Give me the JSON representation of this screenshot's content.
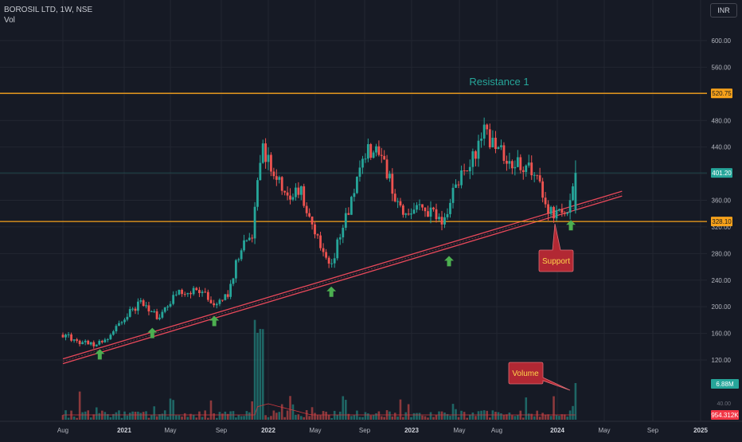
{
  "header": {
    "symbol_line": "BOROSIL LTD, 1W, NSE",
    "volume_label": "Vol",
    "currency": "INR"
  },
  "chart_data": {
    "type": "candlestick",
    "title": "BOROSIL LTD, 1W, NSE",
    "timeframe": "1W",
    "exchange": "NSE",
    "currency": "INR",
    "ylim": [
      88,
      640
    ],
    "y_ticks": [
      120,
      160,
      200,
      240,
      280,
      320,
      360,
      400,
      440,
      480,
      520,
      560,
      600
    ],
    "y_tick_labels": [
      "120.00",
      "160.00",
      "200.00",
      "240.00",
      "280.00",
      "320.00",
      "360.00",
      "400.00",
      "440.00",
      "480.00",
      "520.00",
      "560.00",
      "600.00"
    ],
    "x_ticks": [
      {
        "label": "Aug",
        "date": "2020-08-01"
      },
      {
        "label": "2021",
        "date": "2021-01-01"
      },
      {
        "label": "May",
        "date": "2021-05-01"
      },
      {
        "label": "Sep",
        "date": "2021-09-01"
      },
      {
        "label": "2022",
        "date": "2022-01-01"
      },
      {
        "label": "May",
        "date": "2022-05-01"
      },
      {
        "label": "Sep",
        "date": "2022-09-01"
      },
      {
        "label": "2023",
        "date": "2023-01-01"
      },
      {
        "label": "May",
        "date": "2023-05-01"
      },
      {
        "label": "Aug",
        "date": "2023-08-01"
      },
      {
        "label": "2024",
        "date": "2024-01-01"
      },
      {
        "label": "May",
        "date": "2024-05-01"
      },
      {
        "label": "Sep",
        "date": "2024-09-01"
      },
      {
        "label": "2025",
        "date": "2025-01-01"
      }
    ],
    "price_path": [
      {
        "date": "2020-08-01",
        "close": 158
      },
      {
        "date": "2020-09-01",
        "close": 150
      },
      {
        "date": "2020-10-15",
        "close": 143
      },
      {
        "date": "2020-11-15",
        "close": 150
      },
      {
        "date": "2021-01-01",
        "close": 185
      },
      {
        "date": "2021-02-15",
        "close": 208
      },
      {
        "date": "2021-04-01",
        "close": 182
      },
      {
        "date": "2021-05-15",
        "close": 222
      },
      {
        "date": "2021-07-01",
        "close": 226
      },
      {
        "date": "2021-08-15",
        "close": 208
      },
      {
        "date": "2021-09-15",
        "close": 215
      },
      {
        "date": "2021-10-20",
        "close": 285
      },
      {
        "date": "2021-11-20",
        "close": 310
      },
      {
        "date": "2021-12-15",
        "close": 445
      },
      {
        "date": "2022-01-15",
        "close": 400
      },
      {
        "date": "2022-02-20",
        "close": 365
      },
      {
        "date": "2022-03-20",
        "close": 380
      },
      {
        "date": "2022-04-20",
        "close": 330
      },
      {
        "date": "2022-06-05",
        "close": 258
      },
      {
        "date": "2022-07-10",
        "close": 320
      },
      {
        "date": "2022-08-15",
        "close": 395
      },
      {
        "date": "2022-09-10",
        "close": 440
      },
      {
        "date": "2022-10-20",
        "close": 420
      },
      {
        "date": "2022-12-01",
        "close": 345
      },
      {
        "date": "2023-01-15",
        "close": 345
      },
      {
        "date": "2023-02-20",
        "close": 340
      },
      {
        "date": "2023-03-20",
        "close": 320
      },
      {
        "date": "2023-04-20",
        "close": 385
      },
      {
        "date": "2023-06-01",
        "close": 425
      },
      {
        "date": "2023-07-01",
        "close": 460
      },
      {
        "date": "2023-08-01",
        "close": 440
      },
      {
        "date": "2023-09-01",
        "close": 420
      },
      {
        "date": "2023-10-15",
        "close": 405
      },
      {
        "date": "2023-11-15",
        "close": 405
      },
      {
        "date": "2023-12-01",
        "close": 345
      },
      {
        "date": "2024-01-01",
        "close": 342
      },
      {
        "date": "2024-01-15",
        "close": 352
      },
      {
        "date": "2024-02-01",
        "close": 345
      },
      {
        "date": "2024-02-20",
        "close": 401.2
      }
    ],
    "price_labels": [
      {
        "value": 520.75,
        "text": "520.75",
        "color": "#f7a21b"
      },
      {
        "value": 401.2,
        "text": "401.20",
        "color": "#26a69a"
      },
      {
        "value": 328.1,
        "text": "328.10",
        "color": "#f7a21b"
      }
    ],
    "volume_labels": [
      {
        "text": "6.88M",
        "color": "#26a69a"
      },
      {
        "text": "954.312K",
        "color": "#f23645"
      }
    ],
    "horizontal_lines": [
      {
        "name": "Resistance 1",
        "value": 520.75,
        "color": "#f7a21b"
      },
      {
        "value": 328.1,
        "color": "#f7a21b"
      }
    ],
    "trendline": {
      "color": "#e8485a",
      "start": {
        "date": "2020-08-01",
        "value": 118
      },
      "end": {
        "date": "2024-06-15",
        "value": 370
      }
    },
    "annotations": {
      "resistance_text": "Resistance 1",
      "support_text": "Support",
      "volume_text": "Volume"
    },
    "markers": [
      {
        "date": "2020-11-01",
        "value": 128
      },
      {
        "date": "2021-03-15",
        "value": 160
      },
      {
        "date": "2021-08-15",
        "value": 178
      },
      {
        "date": "2022-06-10",
        "value": 222
      },
      {
        "date": "2023-04-05",
        "value": 268
      },
      {
        "date": "2024-02-05",
        "value": 322
      }
    ]
  },
  "colors": {
    "background": "#161a25",
    "grid": "#222631",
    "up": "#26a69a",
    "down": "#ef5350",
    "orange": "#f7a21b",
    "annotation_red": "#b22833",
    "arrow_green": "#4caf50"
  }
}
